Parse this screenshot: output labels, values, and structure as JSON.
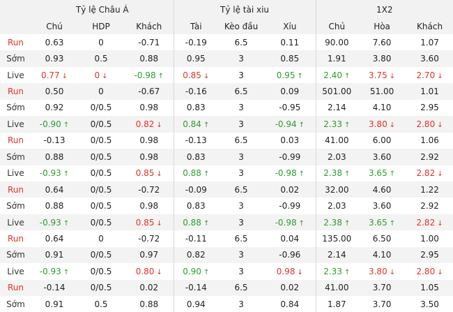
{
  "group_headers": [
    "Tỷ lệ Châu Á",
    "Tỷ lệ tài xiu",
    "1X2"
  ],
  "column_headers": [
    "Chú",
    "HDP",
    "Khách",
    "Tài",
    "Kèo đầu",
    "Xỉu",
    "Chủ",
    "Hòa",
    "Khách"
  ],
  "rows": [
    {
      "label": "Run",
      "label_type": "run",
      "shade": false,
      "cells": [
        {
          "v": "0.63"
        },
        {
          "v": "0"
        },
        {
          "v": "-0.71"
        },
        {
          "v": "-0.19"
        },
        {
          "v": "6.5"
        },
        {
          "v": "0.11"
        },
        {
          "v": "90.00"
        },
        {
          "v": "7.60"
        },
        {
          "v": "1.07"
        }
      ]
    },
    {
      "label": "Sớm",
      "label_type": "normal",
      "shade": true,
      "cells": [
        {
          "v": "0.93"
        },
        {
          "v": "0.5"
        },
        {
          "v": "0.88"
        },
        {
          "v": "0.95"
        },
        {
          "v": "3"
        },
        {
          "v": "0.85"
        },
        {
          "v": "1.91"
        },
        {
          "v": "3.80"
        },
        {
          "v": "3.60"
        }
      ]
    },
    {
      "label": "Live",
      "label_type": "normal",
      "shade": false,
      "cells": [
        {
          "v": "0.77",
          "dir": "down"
        },
        {
          "v": "0",
          "dir": "down"
        },
        {
          "v": "-0.98",
          "dir": "up"
        },
        {
          "v": "0.85",
          "dir": "down"
        },
        {
          "v": "3"
        },
        {
          "v": "0.95",
          "dir": "up"
        },
        {
          "v": "2.40",
          "dir": "up"
        },
        {
          "v": "3.75",
          "dir": "down"
        },
        {
          "v": "2.70",
          "dir": "down"
        }
      ]
    },
    {
      "label": "Run",
      "label_type": "run",
      "shade": true,
      "cells": [
        {
          "v": "0.50"
        },
        {
          "v": "0"
        },
        {
          "v": "-0.67"
        },
        {
          "v": "-0.16"
        },
        {
          "v": "6.5"
        },
        {
          "v": "0.09"
        },
        {
          "v": "501.00"
        },
        {
          "v": "51.00"
        },
        {
          "v": "1.01"
        }
      ]
    },
    {
      "label": "Sớm",
      "label_type": "normal",
      "shade": false,
      "cells": [
        {
          "v": "0.92"
        },
        {
          "v": "0/0.5"
        },
        {
          "v": "0.98"
        },
        {
          "v": "0.83"
        },
        {
          "v": "3"
        },
        {
          "v": "-0.95"
        },
        {
          "v": "2.14"
        },
        {
          "v": "4.10"
        },
        {
          "v": "2.95"
        }
      ]
    },
    {
      "label": "Live",
      "label_type": "normal",
      "shade": true,
      "cells": [
        {
          "v": "-0.90",
          "dir": "up"
        },
        {
          "v": "0/0.5"
        },
        {
          "v": "0.82",
          "dir": "down"
        },
        {
          "v": "0.84",
          "dir": "up"
        },
        {
          "v": "3"
        },
        {
          "v": "-0.94",
          "dir": "up"
        },
        {
          "v": "2.33",
          "dir": "up"
        },
        {
          "v": "3.80",
          "dir": "down"
        },
        {
          "v": "2.80",
          "dir": "down"
        }
      ]
    },
    {
      "label": "Run",
      "label_type": "run",
      "shade": false,
      "cells": [
        {
          "v": "-0.13"
        },
        {
          "v": "0/0.5"
        },
        {
          "v": "0.98"
        },
        {
          "v": "-0.13"
        },
        {
          "v": "6.5"
        },
        {
          "v": "0.03"
        },
        {
          "v": "41.00"
        },
        {
          "v": "6.00"
        },
        {
          "v": "1.06"
        }
      ]
    },
    {
      "label": "Sớm",
      "label_type": "normal",
      "shade": true,
      "cells": [
        {
          "v": "0.88"
        },
        {
          "v": "0/0.5"
        },
        {
          "v": "0.98"
        },
        {
          "v": "0.83"
        },
        {
          "v": "3"
        },
        {
          "v": "-0.99"
        },
        {
          "v": "2.03"
        },
        {
          "v": "3.60"
        },
        {
          "v": "2.92"
        }
      ]
    },
    {
      "label": "Live",
      "label_type": "normal",
      "shade": false,
      "cells": [
        {
          "v": "-0.93",
          "dir": "up"
        },
        {
          "v": "0/0.5"
        },
        {
          "v": "0.85",
          "dir": "down"
        },
        {
          "v": "0.88",
          "dir": "up"
        },
        {
          "v": "3"
        },
        {
          "v": "-0.98",
          "dir": "up"
        },
        {
          "v": "2.38",
          "dir": "up"
        },
        {
          "v": "3.65",
          "dir": "up"
        },
        {
          "v": "2.82",
          "dir": "down"
        }
      ]
    },
    {
      "label": "Run",
      "label_type": "run",
      "shade": true,
      "cells": [
        {
          "v": "0.64"
        },
        {
          "v": "0/0.5"
        },
        {
          "v": "-0.72"
        },
        {
          "v": "-0.09"
        },
        {
          "v": "6.5"
        },
        {
          "v": "0.02"
        },
        {
          "v": "32.00"
        },
        {
          "v": "4.60"
        },
        {
          "v": "1.22"
        }
      ]
    },
    {
      "label": "Sớm",
      "label_type": "normal",
      "shade": false,
      "cells": [
        {
          "v": "0.88"
        },
        {
          "v": "0/0.5"
        },
        {
          "v": "0.98"
        },
        {
          "v": "0.83"
        },
        {
          "v": "3"
        },
        {
          "v": "-0.99"
        },
        {
          "v": "2.03"
        },
        {
          "v": "3.60"
        },
        {
          "v": "2.92"
        }
      ]
    },
    {
      "label": "Live",
      "label_type": "normal",
      "shade": true,
      "cells": [
        {
          "v": "-0.93",
          "dir": "up"
        },
        {
          "v": "0/0.5"
        },
        {
          "v": "0.85",
          "dir": "down"
        },
        {
          "v": "0.88",
          "dir": "up"
        },
        {
          "v": "3"
        },
        {
          "v": "-0.98",
          "dir": "up"
        },
        {
          "v": "2.38",
          "dir": "up"
        },
        {
          "v": "3.65",
          "dir": "up"
        },
        {
          "v": "2.82",
          "dir": "down"
        }
      ]
    },
    {
      "label": "Run",
      "label_type": "run",
      "shade": false,
      "cells": [
        {
          "v": "0.64"
        },
        {
          "v": "0"
        },
        {
          "v": "-0.72"
        },
        {
          "v": "-0.11"
        },
        {
          "v": "6.5"
        },
        {
          "v": "0.04"
        },
        {
          "v": "135.00"
        },
        {
          "v": "6.50"
        },
        {
          "v": "1.00"
        }
      ]
    },
    {
      "label": "Sớm",
      "label_type": "normal",
      "shade": true,
      "cells": [
        {
          "v": "0.91"
        },
        {
          "v": "0/0.5"
        },
        {
          "v": "0.97"
        },
        {
          "v": "0.82"
        },
        {
          "v": "3"
        },
        {
          "v": "-0.96"
        },
        {
          "v": "2.14"
        },
        {
          "v": "4.10"
        },
        {
          "v": "2.95"
        }
      ]
    },
    {
      "label": "Live",
      "label_type": "normal",
      "shade": false,
      "cells": [
        {
          "v": "-0.93",
          "dir": "up"
        },
        {
          "v": "0/0.5"
        },
        {
          "v": "0.80",
          "dir": "down"
        },
        {
          "v": "0.90",
          "dir": "up"
        },
        {
          "v": "3"
        },
        {
          "v": "0.98",
          "dir": "down"
        },
        {
          "v": "2.33",
          "dir": "up"
        },
        {
          "v": "3.80",
          "dir": "down"
        },
        {
          "v": "2.80",
          "dir": "down"
        }
      ]
    },
    {
      "label": "Run",
      "label_type": "run",
      "shade": true,
      "cells": [
        {
          "v": "-0.14"
        },
        {
          "v": "0/0.5"
        },
        {
          "v": "0.02"
        },
        {
          "v": "-0.14"
        },
        {
          "v": "6.5"
        },
        {
          "v": "0.02"
        },
        {
          "v": "41.00"
        },
        {
          "v": "3.70"
        },
        {
          "v": "1.05"
        }
      ]
    },
    {
      "label": "Sớm",
      "label_type": "normal",
      "shade": false,
      "cells": [
        {
          "v": "0.91"
        },
        {
          "v": "0.5"
        },
        {
          "v": "0.88"
        },
        {
          "v": "0.94"
        },
        {
          "v": "3"
        },
        {
          "v": "0.84"
        },
        {
          "v": "1.87"
        },
        {
          "v": "3.70"
        },
        {
          "v": "3.50"
        }
      ]
    }
  ],
  "colors": {
    "up": "#2c9c2c",
    "down": "#e0322b",
    "run_label": "#e0322b",
    "header_bg": "#f2f2f2",
    "shade_bg": "#f3f3f3"
  },
  "icons": {
    "up": "arrow-up-icon",
    "down": "arrow-down-icon"
  }
}
